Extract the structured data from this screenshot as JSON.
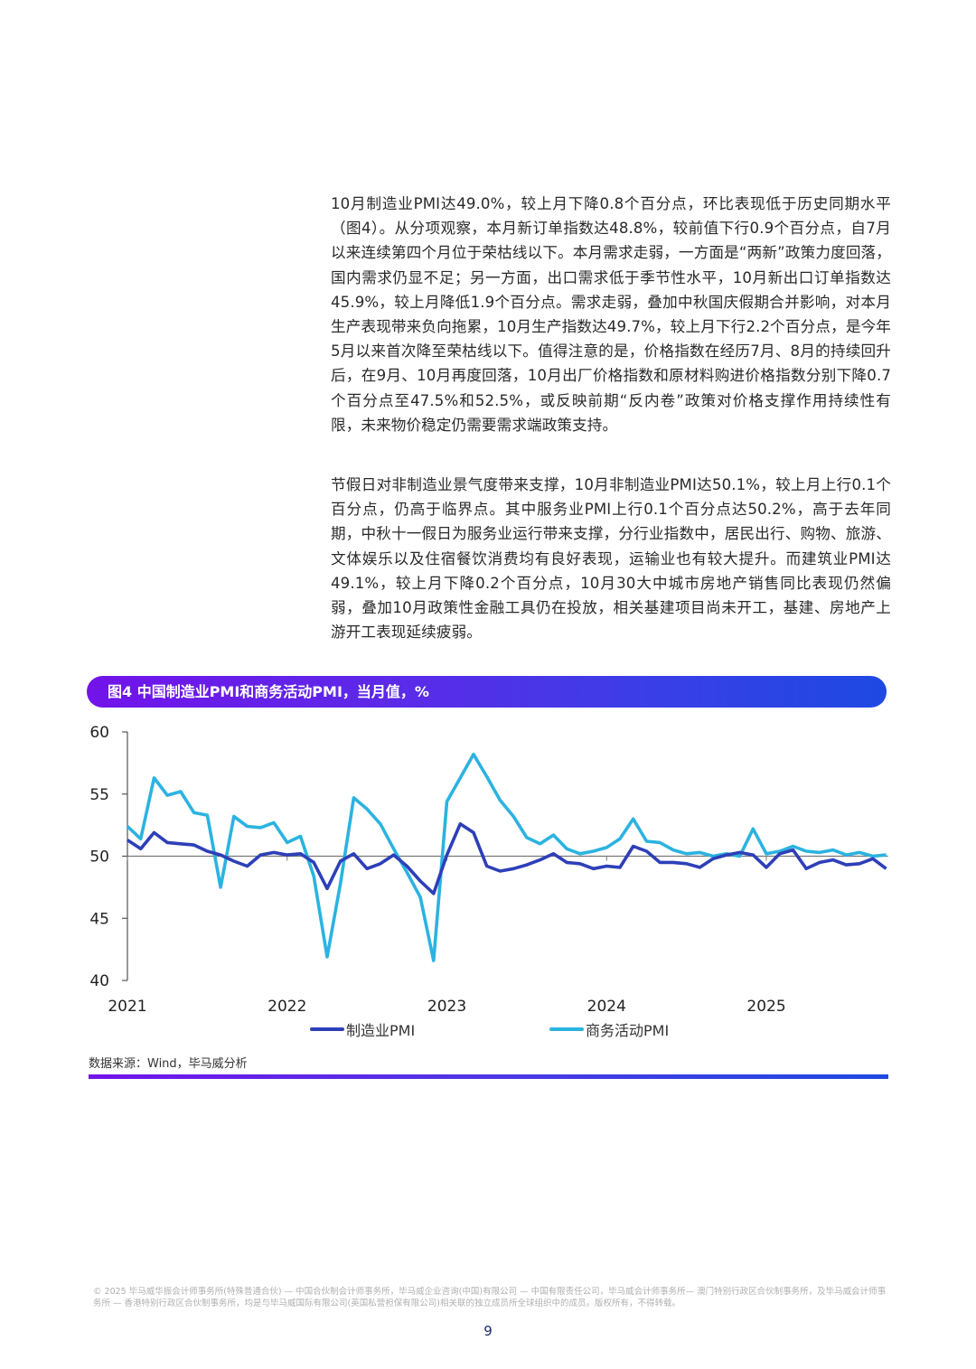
{
  "body": {
    "paragraphs": [
      "10月制造业PMI达49.0%，较上月下降0.8个百分点，环比表现低于历史同期水平（图4）。从分项观察，本月新订单指数达48.8%，较前值下行0.9个百分点，自7月以来连续第四个月位于荣枯线以下。本月需求走弱，一方面是“两新”政策力度回落，国内需求仍显不足；另一方面，出口需求低于季节性水平，10月新出口订单指数达45.9%，较上月降低1.9个百分点。需求走弱，叠加中秋国庆假期合并影响，对本月生产表现带来负向拖累，10月生产指数达49.7%，较上月下行2.2个百分点，是今年5月以来首次降至荣枯线以下。值得注意的是，价格指数在经历7月、8月的持续回升后，在9月、10月再度回落，10月出厂价格指数和原材料购进价格指数分别下降0.7个百分点至47.5%和52.5%，或反映前期“反内卷”政策对价格支撑作用持续性有限，未来物价稳定仍需要需求端政策支持。",
      "节假日对非制造业景气度带来支撑，10月非制造业PMI达50.1%，较上月上行0.1个百分点，仍高于临界点。其中服务业PMI上行0.1个百分点达50.2%，高于去年同期，中秋十一假日为服务业运行带来支撑，分行业指数中，居民出行、购物、旅游、文体娱乐以及住宿餐饮消费均有良好表现，运输业也有较大提升。而建筑业PMI达49.1%，较上月下降0.2个百分点，10月30大中城市房地产销售同比表现仍然偏弱，叠加10月政策性金融工具仍在投放，相关基建项目尚未开工，基建、房地产上游开工表现延续疲弱。"
    ]
  },
  "figure": {
    "title": "图4 中国制造业PMI和商务活动PMI，当月值，%",
    "source": "数据来源：Wind，毕马威分析",
    "bar_gradient": [
      "#7213EA",
      "#1E49E2"
    ]
  },
  "chart_data": {
    "type": "line",
    "title": "图4 中国制造业PMI和商务活动PMI，当月值，%",
    "xlabel": "",
    "ylabel": "",
    "ylim": [
      40,
      60
    ],
    "yticks": [
      40,
      45,
      50,
      55,
      60
    ],
    "xticks": [
      "2021",
      "2022",
      "2023",
      "2024",
      "2025"
    ],
    "reference_line": 50,
    "grid": false,
    "legend_position": "bottom",
    "x_start": "2021-01",
    "x_end": "2025-10",
    "series": [
      {
        "name": "制造业PMI",
        "color": "#2D3FB8",
        "values": [
          51.3,
          50.6,
          51.9,
          51.1,
          51.0,
          50.9,
          50.4,
          50.1,
          49.6,
          49.2,
          50.1,
          50.3,
          50.1,
          50.2,
          49.5,
          47.4,
          49.6,
          50.2,
          49.0,
          49.4,
          50.1,
          49.2,
          48.0,
          47.0,
          50.1,
          52.6,
          51.9,
          49.2,
          48.8,
          49.0,
          49.3,
          49.7,
          50.2,
          49.5,
          49.4,
          49.0,
          49.2,
          49.1,
          50.8,
          50.4,
          49.5,
          49.5,
          49.4,
          49.1,
          49.8,
          50.1,
          50.3,
          50.1,
          49.1,
          50.2,
          50.5,
          49.0,
          49.5,
          49.7,
          49.3,
          49.4,
          49.8,
          49.0
        ]
      },
      {
        "name": "商务活动PMI",
        "color": "#2BB3E0",
        "values": [
          52.4,
          51.4,
          56.3,
          54.9,
          55.2,
          53.5,
          53.3,
          47.5,
          53.2,
          52.4,
          52.3,
          52.7,
          51.1,
          51.6,
          48.4,
          41.9,
          47.8,
          54.7,
          53.8,
          52.6,
          50.6,
          48.7,
          46.7,
          41.6,
          54.4,
          56.3,
          58.2,
          56.4,
          54.5,
          53.2,
          51.5,
          51.0,
          51.7,
          50.6,
          50.2,
          50.4,
          50.7,
          51.4,
          53.0,
          51.2,
          51.1,
          50.5,
          50.2,
          50.3,
          50.0,
          50.2,
          50.0,
          52.2,
          50.2,
          50.4,
          50.8,
          50.4,
          50.3,
          50.5,
          50.1,
          50.3,
          50.0,
          50.1
        ]
      }
    ]
  },
  "legend": {
    "items": [
      {
        "label": "制造业PMI",
        "color": "#2D3FB8"
      },
      {
        "label": "商务活动PMI",
        "color": "#2BB3E0"
      }
    ]
  },
  "footer": {
    "copyright": "© 2025 毕马威华振会计师事务所(特殊普通合伙) — 中国合伙制会计师事务所，毕马威企业咨询(中国)有限公司 — 中国有限责任公司，毕马威会计师事务所— 澳门特别行政区合伙制事务所，及毕马威会计师事务所 — 香港特别行政区合伙制事务所，均是与毕马威国际有限公司(英国私营担保有限公司)相关联的独立成员所全球组织中的成员。版权所有，不得转载。",
    "page_number": "9"
  }
}
